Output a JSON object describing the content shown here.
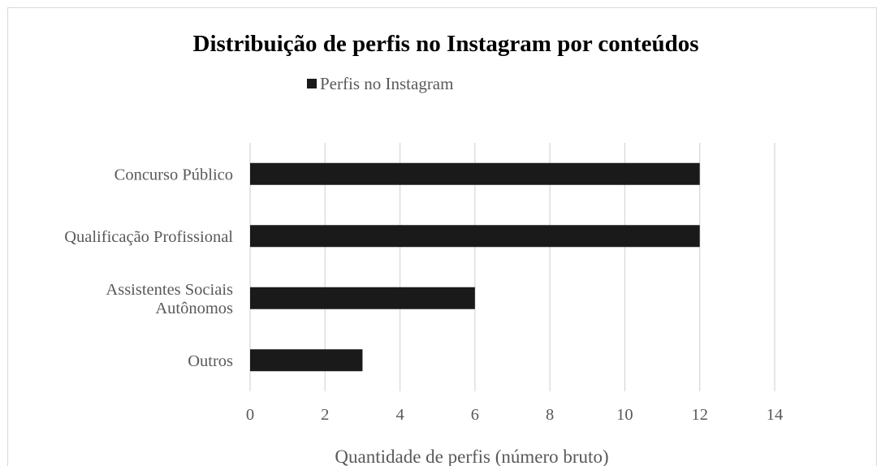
{
  "chart_data": {
    "type": "bar",
    "orientation": "horizontal",
    "title": "Distribuição de perfis no Instagram por conteúdos",
    "xlabel": "Quantidade de perfis (número bruto)",
    "ylabel": "",
    "categories": [
      [
        "Concurso Público"
      ],
      [
        "Qualificação Profissional"
      ],
      [
        "Assistentes Sociais",
        "Autônomos"
      ],
      [
        "Outros"
      ]
    ],
    "series": [
      {
        "name": "Perfis no Instagram",
        "values": [
          12,
          12,
          6,
          3
        ],
        "color": "#1a1a1a"
      }
    ],
    "xlim": [
      0,
      14
    ],
    "xticks": [
      "0",
      "2",
      "4",
      "6",
      "8",
      "10",
      "12",
      "14"
    ],
    "grid": true,
    "legend_position": "top"
  }
}
